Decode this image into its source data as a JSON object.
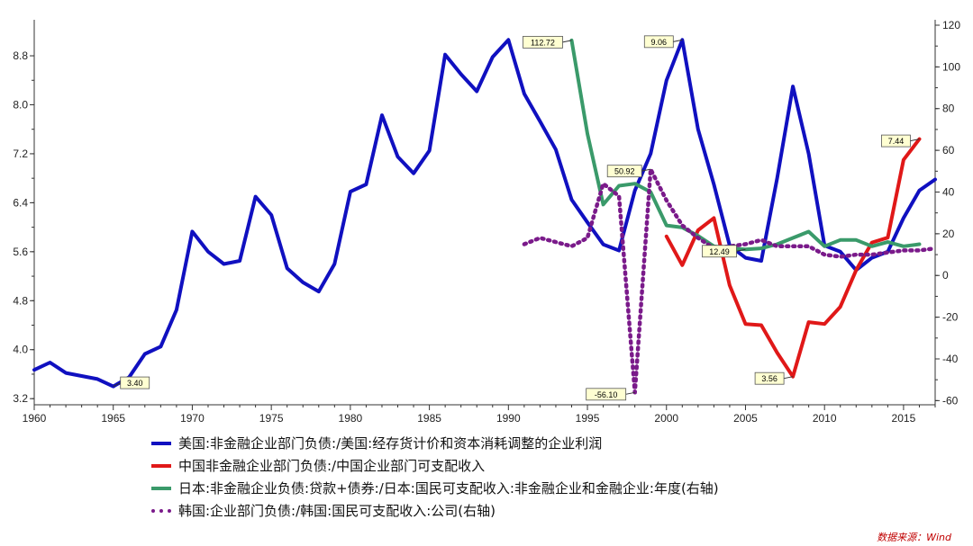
{
  "chart_data": {
    "type": "line",
    "x_ticks": [
      "1960",
      "1965",
      "1970",
      "1975",
      "1980",
      "1985",
      "1990",
      "1995",
      "2000",
      "2005",
      "2010",
      "2015"
    ],
    "y_left_ticks": [
      "3.2",
      "4.0",
      "4.8",
      "5.6",
      "6.4",
      "7.2",
      "8.0",
      "8.8"
    ],
    "y_right_ticks": [
      "-60",
      "-40",
      "-20",
      "0",
      "20",
      "40",
      "60",
      "80",
      "100",
      "120"
    ],
    "xlim": [
      1960,
      2017
    ],
    "ylim_left": [
      3.1,
      9.3
    ],
    "ylim_right": [
      -62,
      120
    ],
    "grid": false,
    "legend_position": "bottom",
    "series": [
      {
        "name": "美国:非金融企业部门负债:/美国:经存货计价和资本消耗调整的企业利润",
        "axis": "left",
        "color": "#1010c0",
        "style": "solid",
        "x": [
          1960,
          1961,
          1962,
          1963,
          1964,
          1965,
          1966,
          1967,
          1968,
          1969,
          1970,
          1971,
          1972,
          1973,
          1974,
          1975,
          1976,
          1977,
          1978,
          1979,
          1980,
          1981,
          1982,
          1983,
          1984,
          1985,
          1986,
          1987,
          1988,
          1989,
          1990,
          1991,
          1992,
          1993,
          1994,
          1995,
          1996,
          1997,
          1998,
          1999,
          2000,
          2001,
          2002,
          2003,
          2004,
          2005,
          2006,
          2007,
          2008,
          2009,
          2010,
          2011,
          2012,
          2013,
          2014,
          2015,
          2016,
          2017
        ],
        "y": [
          3.67,
          3.79,
          3.62,
          3.57,
          3.52,
          3.4,
          3.55,
          3.93,
          4.05,
          4.65,
          5.93,
          5.6,
          5.4,
          5.45,
          6.5,
          6.2,
          5.33,
          5.1,
          4.95,
          5.4,
          6.58,
          6.7,
          7.83,
          7.15,
          6.88,
          7.25,
          8.82,
          8.5,
          8.22,
          8.78,
          9.06,
          8.18,
          7.73,
          7.27,
          6.45,
          6.08,
          5.72,
          5.62,
          6.6,
          7.2,
          8.4,
          9.06,
          7.6,
          6.7,
          5.7,
          5.5,
          5.45,
          6.8,
          8.3,
          7.2,
          5.7,
          5.6,
          5.3,
          5.5,
          5.6,
          6.15,
          6.6,
          6.78
        ]
      },
      {
        "name": "中国非金融企业部门负债:/中国企业部门可支配收入",
        "axis": "left",
        "color": "#e01818",
        "style": "solid",
        "x": [
          2000,
          2001,
          2002,
          2003,
          2004,
          2005,
          2006,
          2007,
          2008,
          2009,
          2010,
          2011,
          2012,
          2013,
          2014,
          2015,
          2016
        ],
        "y": [
          5.85,
          5.38,
          5.95,
          6.15,
          5.05,
          4.42,
          4.4,
          3.95,
          3.56,
          4.45,
          4.42,
          4.7,
          5.3,
          5.75,
          5.83,
          7.1,
          7.44
        ]
      },
      {
        "name": "日本:非金融企业负债:贷款+债券:/日本:国民可支配收入:非金融企业和金融企业:年度(右轴)",
        "axis": "right",
        "color": "#3a9a6a",
        "style": "solid",
        "x": [
          1994,
          1995,
          1996,
          1997,
          1998,
          1999,
          2000,
          2001,
          2002,
          2003,
          2004,
          2005,
          2006,
          2007,
          2008,
          2009,
          2010,
          2011,
          2012,
          2013,
          2014,
          2015,
          2016
        ],
        "y": [
          112.72,
          68,
          34,
          43,
          44,
          40,
          24,
          23,
          19,
          14,
          13,
          12.49,
          13,
          15,
          18,
          21,
          14,
          17,
          17,
          14,
          16,
          14,
          15
        ]
      },
      {
        "name": "韩国:企业部门负债:/韩国:国民可支配收入:公司(右轴)",
        "axis": "right",
        "color": "#7a1a8a",
        "style": "dotted",
        "x": [
          1991,
          1992,
          1993,
          1994,
          1995,
          1996,
          1997,
          1998,
          1999,
          2000,
          2001,
          2002,
          2003,
          2004,
          2005,
          2006,
          2007,
          2008,
          2009,
          2010,
          2011,
          2012,
          2013,
          2014,
          2015,
          2016,
          2017
        ],
        "y": [
          15,
          18,
          16,
          14,
          18,
          44,
          38,
          -56.1,
          50.92,
          36,
          24,
          18,
          13,
          14,
          15,
          17,
          14,
          14,
          14,
          10,
          9,
          10,
          10,
          11,
          12,
          12,
          13
        ]
      }
    ],
    "annotations": [
      {
        "label": "3.40",
        "x": 1965,
        "y": 3.4,
        "axis": "left",
        "side": "right"
      },
      {
        "label": "9.06",
        "x": 2001,
        "y": 9.06,
        "axis": "left",
        "side": "left"
      },
      {
        "label": "7.44",
        "x": 2016,
        "y": 7.44,
        "axis": "left",
        "side": "left"
      },
      {
        "label": "3.56",
        "x": 2008,
        "y": 3.56,
        "axis": "left",
        "side": "left"
      },
      {
        "label": "112.72",
        "x": 1994,
        "y": 112.72,
        "axis": "right",
        "side": "left"
      },
      {
        "label": "50.92",
        "x": 1999,
        "y": 50.92,
        "axis": "right",
        "side": "left"
      },
      {
        "label": "12.49",
        "x": 2005,
        "y": 12.49,
        "axis": "right",
        "side": "left"
      },
      {
        "label": "-56.10",
        "x": 1998,
        "y": -56.1,
        "axis": "right",
        "side": "left"
      }
    ]
  },
  "source_text": "数据来源：Wind"
}
